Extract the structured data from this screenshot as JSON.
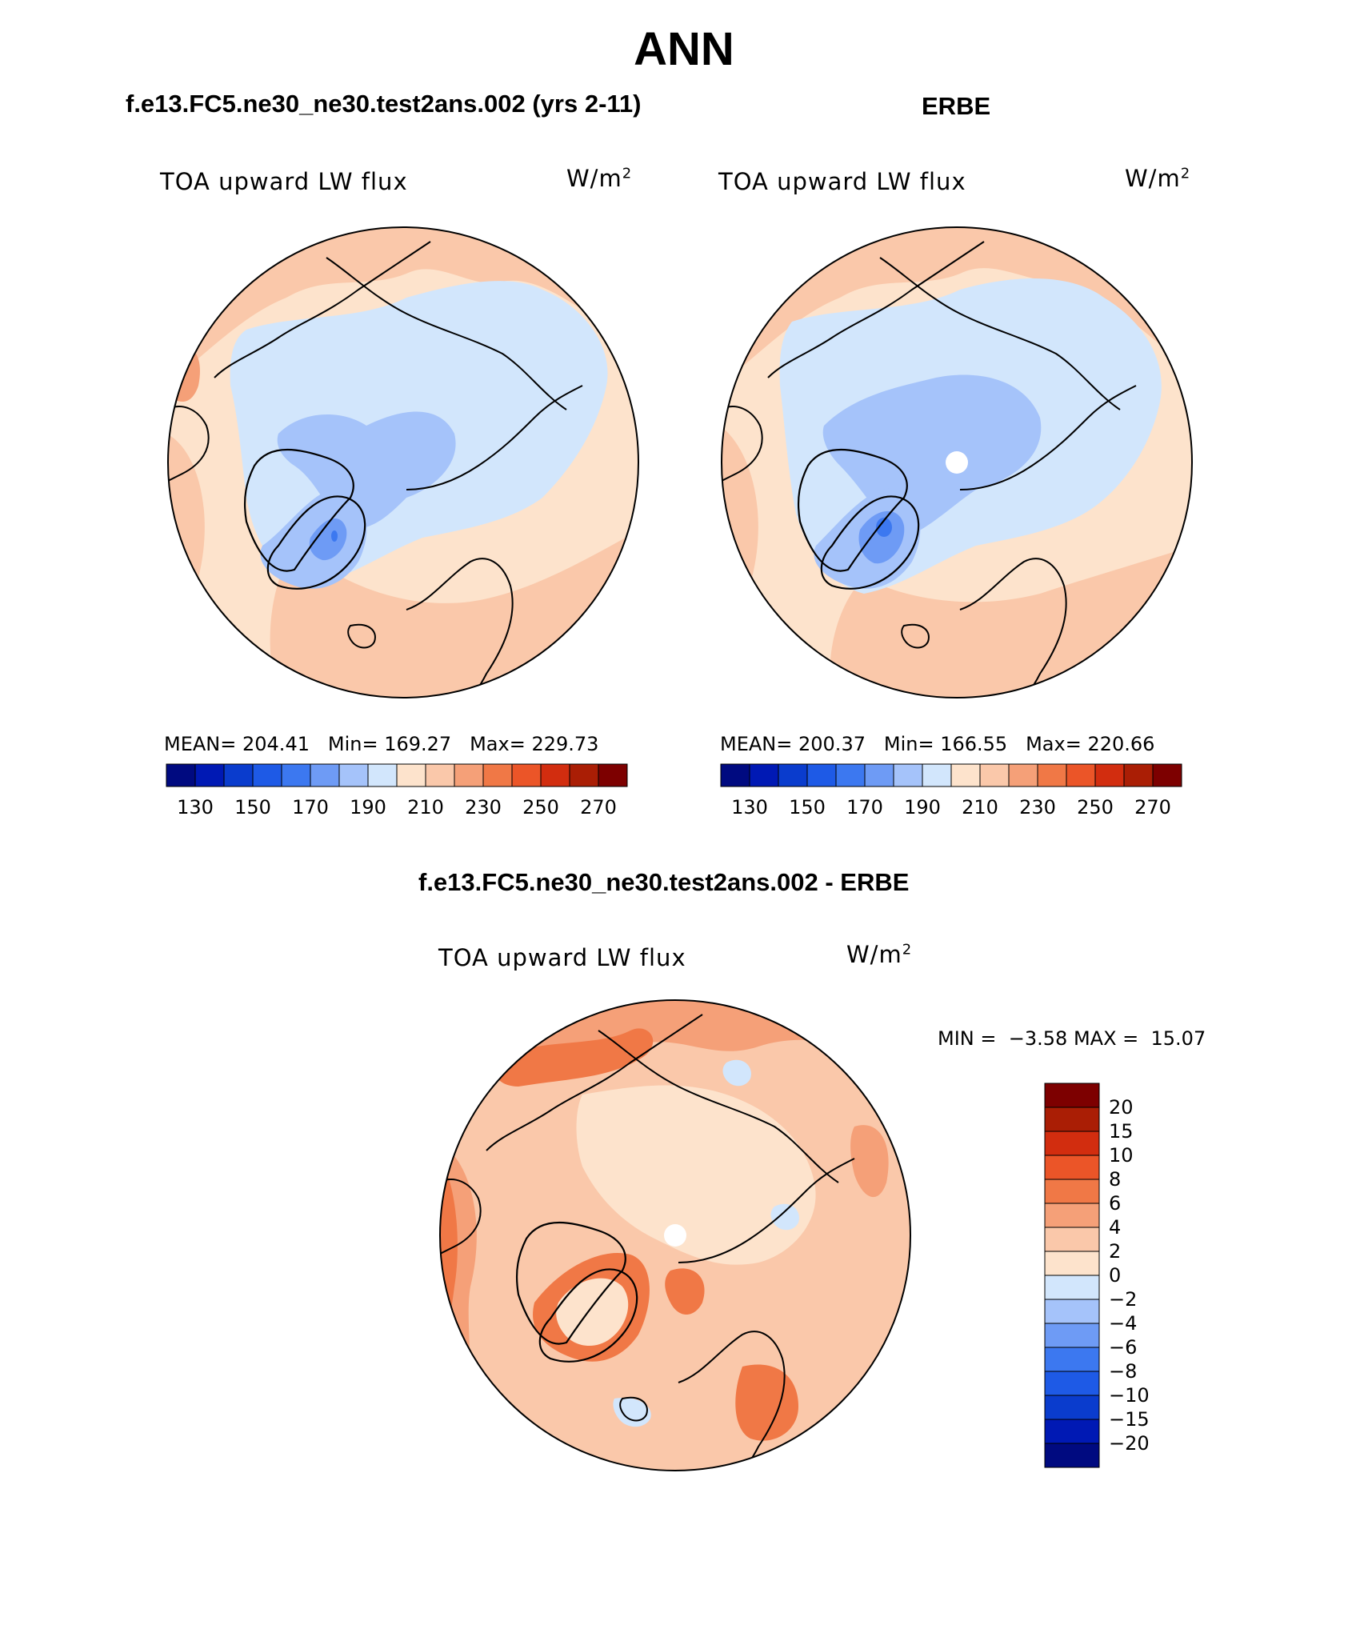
{
  "figure_title": "ANN",
  "panels": [
    {
      "id": "model",
      "title": "f.e13.FC5.ne30_ne30.test2ans.002 (yrs 2-11)",
      "field": "TOA upward LW flux",
      "units": "W/m",
      "units_sup": "2",
      "stats": {
        "mean_label": "MEAN=",
        "mean": "204.41",
        "min_label": "Min=",
        "min": "169.27",
        "max_label": "Max=",
        "max": "229.73"
      },
      "colorbar_labels": [
        "130",
        "150",
        "170",
        "190",
        "210",
        "230",
        "250",
        "270"
      ]
    },
    {
      "id": "obs",
      "title": "ERBE",
      "field": "TOA upward LW flux",
      "units": "W/m",
      "units_sup": "2",
      "stats": {
        "mean_label": "MEAN=",
        "mean": "200.37",
        "min_label": "Min=",
        "min": "166.55",
        "max_label": "Max=",
        "max": "220.66"
      },
      "colorbar_labels": [
        "130",
        "150",
        "170",
        "190",
        "210",
        "230",
        "250",
        "270"
      ]
    },
    {
      "id": "diff",
      "title": "f.e13.FC5.ne30_ne30.test2ans.002 - ERBE",
      "field": "TOA upward LW flux",
      "units": "W/m",
      "units_sup": "2",
      "stats": {
        "min_label": "MIN =",
        "min": "−3.58",
        "max_label": "MAX =",
        "max": "15.07"
      },
      "colorbar_labels": [
        "20",
        "15",
        "10",
        "8",
        "6",
        "4",
        "2",
        "0",
        "−2",
        "−4",
        "−6",
        "−8",
        "−10",
        "−15",
        "−20"
      ]
    }
  ],
  "colors": {
    "abs_scale": [
      "#000a80",
      "#0019b4",
      "#0a3ccd",
      "#1e5ae6",
      "#3c78f0",
      "#6e9bf5",
      "#a5c3fa",
      "#d2e6fc",
      "#fde3cc",
      "#fac8aa",
      "#f5a078",
      "#f07846",
      "#eb5528",
      "#d22d0f",
      "#aa1e05",
      "#7d0000"
    ],
    "diff_scale": [
      "#7d0000",
      "#aa1e05",
      "#d22d0f",
      "#eb5528",
      "#f07846",
      "#f5a078",
      "#fac8aa",
      "#fde3cc",
      "#d2e6fc",
      "#a5c3fa",
      "#6e9bf5",
      "#3c78f0",
      "#1e5ae6",
      "#0a3ccd",
      "#0019b4",
      "#000a80"
    ]
  }
}
